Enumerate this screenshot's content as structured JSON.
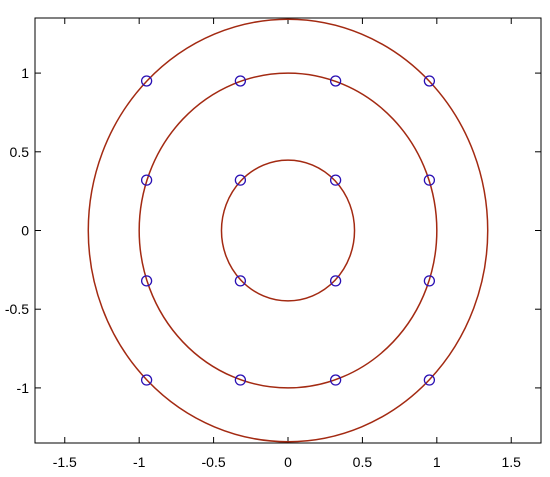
{
  "chart_data": {
    "type": "scatter",
    "title": "",
    "xlabel": "",
    "ylabel": "",
    "xlim": [
      -1.7,
      1.7
    ],
    "ylim": [
      -1.35,
      1.35
    ],
    "grid": false,
    "legend": "none",
    "x_ticks": [
      {
        "value": -1.5,
        "label": "-1.5"
      },
      {
        "value": -1,
        "label": "-1"
      },
      {
        "value": -0.5,
        "label": "-0.5"
      },
      {
        "value": 0,
        "label": "0"
      },
      {
        "value": 0.5,
        "label": "0.5"
      },
      {
        "value": 1,
        "label": "1"
      },
      {
        "value": 1.5,
        "label": "1.5"
      }
    ],
    "y_ticks": [
      {
        "value": 1,
        "label": "1"
      },
      {
        "value": 0.5,
        "label": "0.5"
      },
      {
        "value": 0,
        "label": "0"
      },
      {
        "value": -0.5,
        "label": "-0.5"
      },
      {
        "value": -1,
        "label": "-1"
      }
    ],
    "circles": [
      {
        "cx": 0,
        "cy": 0,
        "r": 0.447
      },
      {
        "cx": 0,
        "cy": 0,
        "r": 1.0
      },
      {
        "cx": 0,
        "cy": 0,
        "r": 1.342
      }
    ],
    "points": [
      {
        "x": -0.95,
        "y": 0.95
      },
      {
        "x": -0.32,
        "y": 0.95
      },
      {
        "x": 0.32,
        "y": 0.95
      },
      {
        "x": 0.95,
        "y": 0.95
      },
      {
        "x": -0.95,
        "y": 0.32
      },
      {
        "x": -0.32,
        "y": 0.32
      },
      {
        "x": 0.32,
        "y": 0.32
      },
      {
        "x": 0.95,
        "y": 0.32
      },
      {
        "x": -0.95,
        "y": -0.32
      },
      {
        "x": -0.32,
        "y": -0.32
      },
      {
        "x": 0.32,
        "y": -0.32
      },
      {
        "x": 0.95,
        "y": -0.32
      },
      {
        "x": -0.95,
        "y": -0.95
      },
      {
        "x": -0.32,
        "y": -0.95
      },
      {
        "x": 0.32,
        "y": -0.95
      },
      {
        "x": 0.95,
        "y": -0.95
      }
    ],
    "colors": {
      "circle": "#a32a12",
      "marker": "#2a10b4",
      "axis": "#000000"
    }
  }
}
